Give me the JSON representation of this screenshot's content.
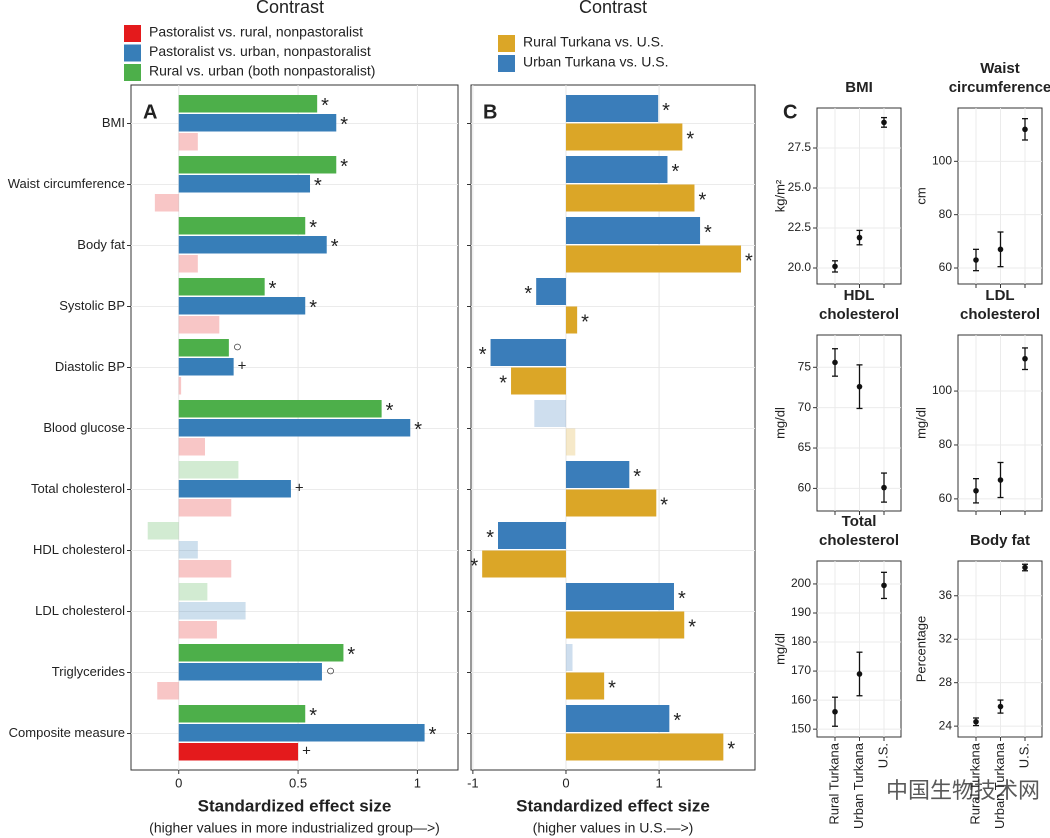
{
  "chart_data": [
    {
      "type": "hbar",
      "panel": "A",
      "header": "Contrast",
      "categories": [
        "BMI",
        "Waist circumference",
        "Body fat",
        "Systolic BP",
        "Diastolic BP",
        "Blood glucose",
        "Total cholesterol",
        "HDL cholesterol",
        "LDL cholesterol",
        "Triglycerides",
        "Composite measure"
      ],
      "series": [
        {
          "name": "Rural vs. urban (both nonpastoralist)",
          "color": "#4daf4a",
          "values": [
            0.58,
            0.66,
            0.53,
            0.36,
            0.21,
            0.85,
            0.25,
            -0.13,
            0.12,
            0.69,
            0.53
          ],
          "markers": [
            "*",
            "*",
            "*",
            "*",
            "○",
            "*",
            null,
            null,
            null,
            "*",
            "*"
          ]
        },
        {
          "name": "Pastoralist vs. urban, nonpastoralist",
          "color": "#377eb8",
          "values": [
            0.66,
            0.55,
            0.62,
            0.53,
            0.23,
            0.97,
            0.47,
            0.08,
            0.28,
            0.6,
            1.03
          ],
          "markers": [
            "*",
            "*",
            "*",
            "*",
            "+",
            "*",
            "+",
            null,
            null,
            "○",
            "*"
          ]
        },
        {
          "name": "Pastoralist vs. rural, nonpastoralist",
          "color": "#e41a1c",
          "values": [
            0.08,
            -0.1,
            0.08,
            0.17,
            0.01,
            0.11,
            0.22,
            0.22,
            0.16,
            -0.09,
            0.5
          ],
          "markers": [
            null,
            null,
            null,
            null,
            null,
            null,
            null,
            null,
            null,
            null,
            "+"
          ]
        }
      ],
      "xlim": [
        -0.2,
        1.17
      ],
      "xticks": [
        0,
        0.5,
        1
      ],
      "grid": true,
      "xlabel": "Standardized effect size",
      "xlabel_note": "(higher values in more industrialized group—>)"
    },
    {
      "type": "hbar",
      "panel": "B",
      "header": "Contrast",
      "series": [
        {
          "name": "Urban Turkana vs. U.S.",
          "color": "#3a7dba",
          "values": [
            0.99,
            1.09,
            1.44,
            -0.32,
            -0.81,
            -0.34,
            0.68,
            -0.73,
            1.16,
            0.07,
            1.11
          ],
          "markers": [
            "*",
            "*",
            "*",
            "*",
            "*",
            null,
            "*",
            "*",
            "*",
            null,
            "*"
          ]
        },
        {
          "name": "Rural Turkana vs. U.S.",
          "color": "#dba627",
          "values": [
            1.25,
            1.38,
            1.88,
            0.12,
            -0.59,
            0.1,
            0.97,
            -0.9,
            1.27,
            0.41,
            1.69
          ],
          "markers": [
            "*",
            "*",
            "*",
            "*",
            "*",
            null,
            "*",
            "*",
            "*",
            "*",
            "*"
          ]
        }
      ],
      "xlim": [
        -1.02,
        2.03
      ],
      "xticks": [
        -1,
        0,
        1
      ],
      "grid": true,
      "xlabel": "Standardized effect size",
      "xlabel_note": "(higher values in U.S.—>)"
    },
    {
      "type": "errorpoint",
      "panel": "C",
      "categories": [
        "Rural Turkana",
        "Urban Turkana",
        "U.S."
      ],
      "subplots": [
        {
          "title": [
            "BMI"
          ],
          "ylabel": "kg/m²",
          "ylim": [
            19,
            30
          ],
          "yticks": [
            {
              "value": 20,
              "label": "20.0"
            },
            22.5,
            {
              "value": 25,
              "label": "25.0"
            },
            27.5
          ],
          "values": [
            20.1,
            21.9,
            29.1
          ],
          "errors": [
            0.35,
            0.45,
            0.3
          ]
        },
        {
          "title": [
            "Waist",
            "circumference"
          ],
          "ylabel": "cm",
          "ylim": [
            54,
            120
          ],
          "yticks": [
            60,
            80,
            100
          ],
          "values": [
            63,
            67,
            112
          ],
          "errors": [
            4,
            6.5,
            4
          ]
        },
        {
          "title": [
            "HDL",
            "cholesterol"
          ],
          "ylabel": "mg/dl",
          "ylim": [
            57.2,
            79
          ],
          "yticks": [
            60,
            65,
            70,
            75
          ],
          "values": [
            75.6,
            72.6,
            60.1
          ],
          "errors": [
            1.7,
            2.7,
            1.8
          ]
        },
        {
          "title": [
            "LDL",
            "cholesterol"
          ],
          "ylabel": "mg/dl",
          "ylim": [
            55.5,
            120.8
          ],
          "yticks": [
            60,
            80,
            100
          ],
          "values": [
            63,
            67,
            112
          ],
          "errors": [
            4.5,
            6.5,
            4
          ]
        },
        {
          "title": [
            "Total",
            "cholesterol"
          ],
          "ylabel": "mg/dl",
          "ylim": [
            147.3,
            207.9
          ],
          "yticks": [
            150,
            160,
            170,
            180,
            190,
            200
          ],
          "values": [
            156,
            169,
            199.5
          ],
          "errors": [
            5,
            7.5,
            4.5
          ]
        },
        {
          "title": [
            "Body fat"
          ],
          "ylabel": "Percentage",
          "ylim": [
            23,
            39.2
          ],
          "yticks": [
            24,
            28,
            32,
            36
          ],
          "values": [
            24.4,
            25.8,
            38.6
          ],
          "errors": [
            0.35,
            0.6,
            0.3
          ]
        }
      ]
    },
    {
      "type": "watermark",
      "text": "中国生物技术网"
    }
  ]
}
